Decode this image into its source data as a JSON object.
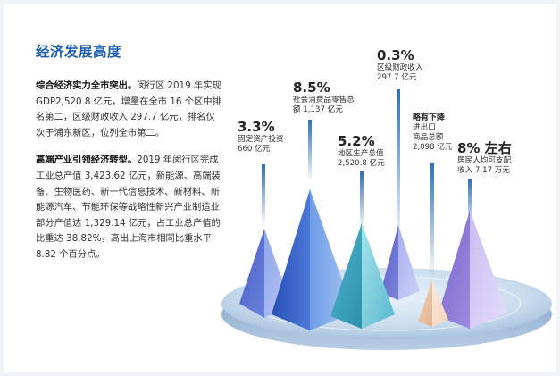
{
  "section": {
    "title": "经济发展高度",
    "para1_lead": "综合经济实力全市突出。",
    "para1_body": "闵行区 2019 年实现 GDP2,520.8 亿元，增量在全市 16 个区中排名第二，区级财政收入 297.7 亿元，排名仅次于浦东新区，位列全市第二。",
    "para2_lead": "高端产业引领经济转型。",
    "para2_body": "2019 年闵行区完成工业总产值 3,423.62 亿元，新能源、高端装备、生物医药、新一代信息技术、新材料、新能源汽车、节能环保等战略性新兴产业制造业部分产值达 1,329.14 亿元，占工业总产值的比重达 38.82%，高出上海市相同比重水平 8.82 个百分点。"
  },
  "stats": [
    {
      "id": "fixed-asset",
      "pct": "3.3%",
      "label1": "固定资产投资",
      "label2": "660 亿元",
      "growth": 3.3
    },
    {
      "id": "retail",
      "pct": "8.5%",
      "label1": "社会消费品零售总",
      "label2": "额 1,137 亿元",
      "growth": 8.5
    },
    {
      "id": "gdp",
      "pct": "5.2%",
      "label1": "地区生产总值",
      "label2": "2,520.8 亿元",
      "growth": 5.2
    },
    {
      "id": "fiscal",
      "pct": "0.3%",
      "label1": "区级财政收入",
      "label2": "297.7 亿元",
      "growth": 0.3
    },
    {
      "id": "trade",
      "pct": "略有下降",
      "label1": "进出口",
      "label2": "商品总额",
      "label3": "2,098 亿元"
    },
    {
      "id": "income",
      "pct": "8% 左右",
      "label1": "居民人均可支配",
      "label2": "收入 7.17 万元",
      "growth": 8
    }
  ],
  "colors": {
    "title": "#1f5fae",
    "platform": "#9bbad8",
    "accent_blue": "#3a7bd5"
  }
}
